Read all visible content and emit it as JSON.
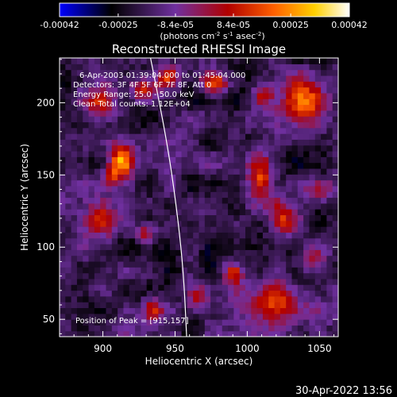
{
  "chart_data": {
    "type": "heatmap",
    "title": "Reconstructed RHESSI Image",
    "xlabel": "Heliocentric X (arcsec)",
    "ylabel": "Heliocentric Y (arcsec)",
    "xlim": [
      870,
      1063
    ],
    "ylim": [
      38,
      231
    ],
    "xticks": [
      900,
      950,
      1000,
      1050
    ],
    "yticks": [
      50,
      100,
      150,
      200
    ],
    "colorbar": {
      "min": -0.00042,
      "max": 0.00042,
      "tick_values": [
        -0.00042,
        -0.00025,
        -8.4e-05,
        8.4e-05,
        0.00025,
        0.00042
      ],
      "tick_labels": [
        "-0.00042",
        "-0.00025",
        "-8.4e-05",
        "8.4e-05",
        "0.00025",
        "0.00042"
      ],
      "unit_label": "(photons cm",
      "unit_exp1": "-2",
      "unit_mid": " s",
      "unit_exp2": "-1",
      "unit_mid2": " asec",
      "unit_exp3": "-2",
      "unit_end": ")",
      "colors": [
        "#0000ff",
        "#000000",
        "#7030a0",
        "#b00000",
        "#ff6000",
        "#ffd000",
        "#ffffff"
      ]
    },
    "annotations": [
      "6-Apr-2003 01:39:04.000 to 01:45:04.000",
      "Detectors: 3F 4F 5F 6F 7F 8F, Att 0",
      "Energy Range: 25.0 - 50.0 keV",
      "Clean     Total counts: 1.12E+04"
    ],
    "peak_label": "Position of Peak = [915,157]",
    "peak": {
      "x": 915,
      "y": 157
    },
    "limb_curve": [
      [
        933,
        231
      ],
      [
        945,
        170
      ],
      [
        952,
        120
      ],
      [
        956,
        80
      ],
      [
        958,
        38
      ]
    ],
    "blobs": [
      {
        "x": 913,
        "y": 160,
        "sx": 6,
        "sy": 8,
        "a": 0.62
      },
      {
        "x": 900,
        "y": 200,
        "sx": 8,
        "sy": 8,
        "a": 0.38
      },
      {
        "x": 928,
        "y": 210,
        "sx": 7,
        "sy": 6,
        "a": 0.36
      },
      {
        "x": 945,
        "y": 218,
        "sx": 6,
        "sy": 5,
        "a": 0.3
      },
      {
        "x": 978,
        "y": 213,
        "sx": 7,
        "sy": 5,
        "a": 0.4
      },
      {
        "x": 1010,
        "y": 205,
        "sx": 5,
        "sy": 6,
        "a": 0.36
      },
      {
        "x": 1040,
        "y": 200,
        "sx": 10,
        "sy": 12,
        "a": 0.46
      },
      {
        "x": 1050,
        "y": 140,
        "sx": 6,
        "sy": 6,
        "a": 0.32
      },
      {
        "x": 1025,
        "y": 120,
        "sx": 6,
        "sy": 8,
        "a": 0.32
      },
      {
        "x": 1010,
        "y": 150,
        "sx": 6,
        "sy": 12,
        "a": 0.34
      },
      {
        "x": 900,
        "y": 122,
        "sx": 7,
        "sy": 10,
        "a": 0.4
      },
      {
        "x": 930,
        "y": 110,
        "sx": 5,
        "sy": 5,
        "a": 0.34
      },
      {
        "x": 965,
        "y": 65,
        "sx": 6,
        "sy": 8,
        "a": 0.28
      },
      {
        "x": 1020,
        "y": 60,
        "sx": 14,
        "sy": 10,
        "a": 0.42
      },
      {
        "x": 990,
        "y": 82,
        "sx": 5,
        "sy": 5,
        "a": 0.34
      },
      {
        "x": 935,
        "y": 58,
        "sx": 5,
        "sy": 6,
        "a": 0.28
      },
      {
        "x": 1045,
        "y": 92,
        "sx": 6,
        "sy": 6,
        "a": 0.28
      },
      {
        "x": 905,
        "y": 150,
        "sx": 4,
        "sy": 5,
        "a": 0.3
      }
    ]
  },
  "timestamp": "30-Apr-2022 13:56"
}
